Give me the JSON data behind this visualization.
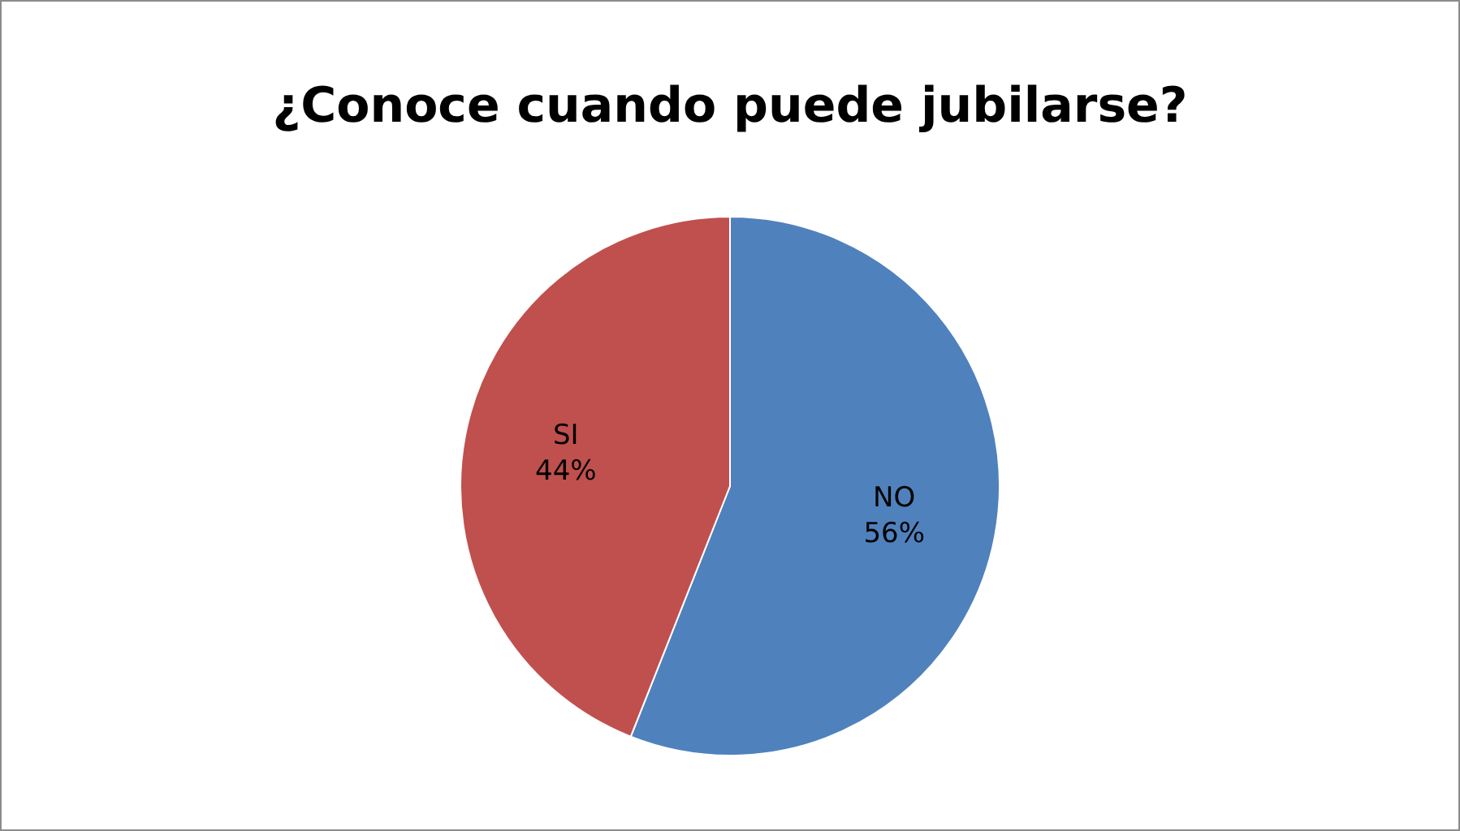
{
  "chart_data": {
    "type": "pie",
    "title": "¿Conoce cuando puede jubilarse?",
    "categories": [
      "NO",
      "SI"
    ],
    "values": [
      56,
      44
    ],
    "colors": [
      "#4f81bd",
      "#c0504d"
    ],
    "value_labels": [
      "56%",
      "44%"
    ],
    "legend": false
  }
}
